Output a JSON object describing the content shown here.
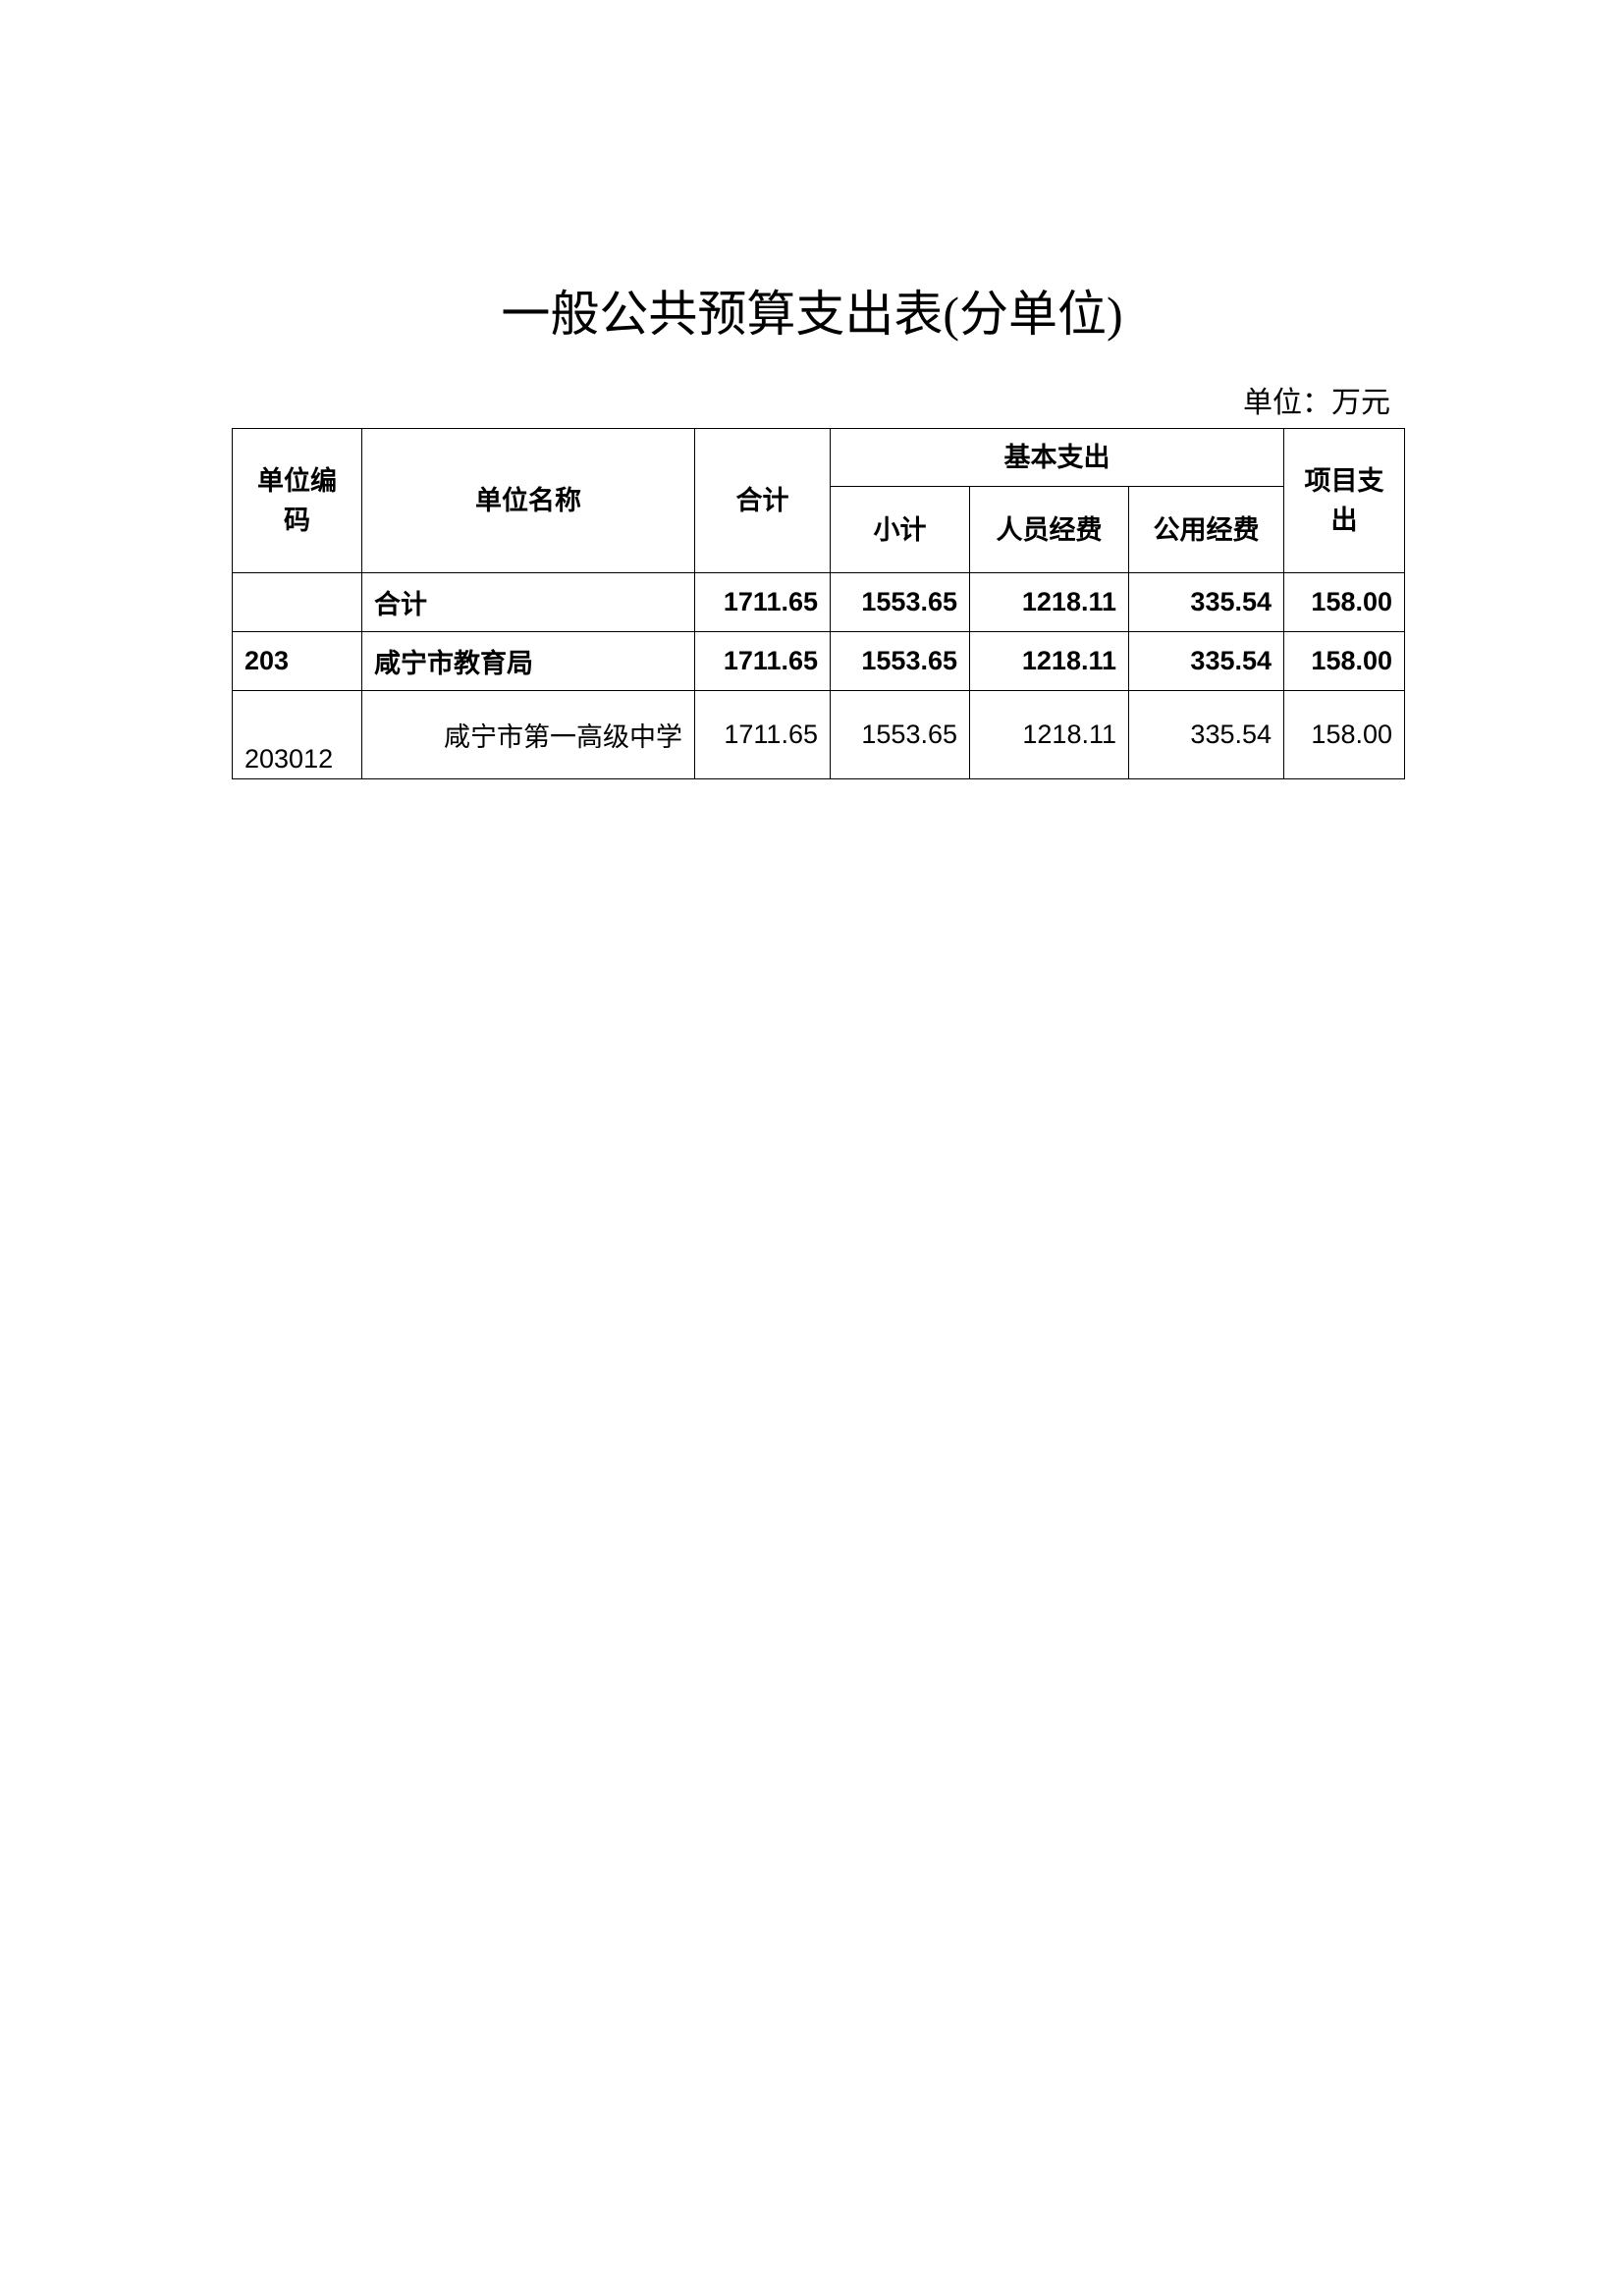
{
  "title": "一般公共预算支出表(分单位)",
  "unit": "单位：万元",
  "headers": {
    "code": "单位编码",
    "name": "单位名称",
    "total": "合计",
    "basic": "基本支出",
    "subtotal": "小计",
    "personnel": "人员经费",
    "public": "公用经费",
    "project": "项目支出"
  },
  "rows": [
    {
      "code": "",
      "name": "合计",
      "total": "1711.65",
      "subtotal": "1553.65",
      "personnel": "1218.11",
      "public": "335.54",
      "project": "158.00"
    },
    {
      "code": "203",
      "name": "咸宁市教育局",
      "total": "1711.65",
      "subtotal": "1553.65",
      "personnel": "1218.11",
      "public": "335.54",
      "project": "158.00"
    },
    {
      "code": "203012",
      "name": "咸宁市第一高级中学",
      "total": "1711.65",
      "subtotal": "1553.65",
      "personnel": "1218.11",
      "public": "335.54",
      "project": "158.00"
    }
  ]
}
